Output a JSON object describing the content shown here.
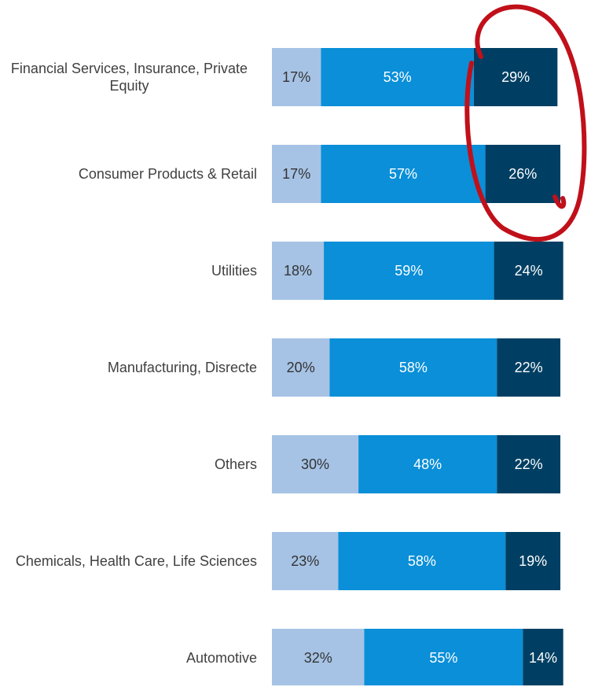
{
  "chart_data": {
    "type": "bar",
    "orientation": "horizontal",
    "stacked": true,
    "categories": [
      "Financial Services, Insurance, Private Equity",
      "Consumer Products & Retail",
      "Utilities",
      "Manufacturing, Disrecte",
      "Others",
      "Chemicals, Health Care, Life Sciences",
      "Automotive"
    ],
    "series": [
      {
        "color": "#a6c3e5",
        "values": [
          17,
          17,
          18,
          20,
          30,
          23,
          32
        ],
        "value_labels": [
          "17%",
          "17%",
          "18%",
          "20%",
          "30%",
          "23%",
          "32%"
        ]
      },
      {
        "color": "#0a8fd8",
        "values": [
          53,
          57,
          59,
          58,
          48,
          58,
          55
        ],
        "value_labels": [
          "53%",
          "57%",
          "59%",
          "58%",
          "48%",
          "58%",
          "55%"
        ]
      },
      {
        "color": "#003f63",
        "values": [
          29,
          26,
          24,
          22,
          22,
          19,
          14
        ],
        "value_labels": [
          "29%",
          "26%",
          "24%",
          "22%",
          "22%",
          "19%",
          "14%"
        ]
      }
    ],
    "xlim": [
      0,
      100
    ]
  }
}
